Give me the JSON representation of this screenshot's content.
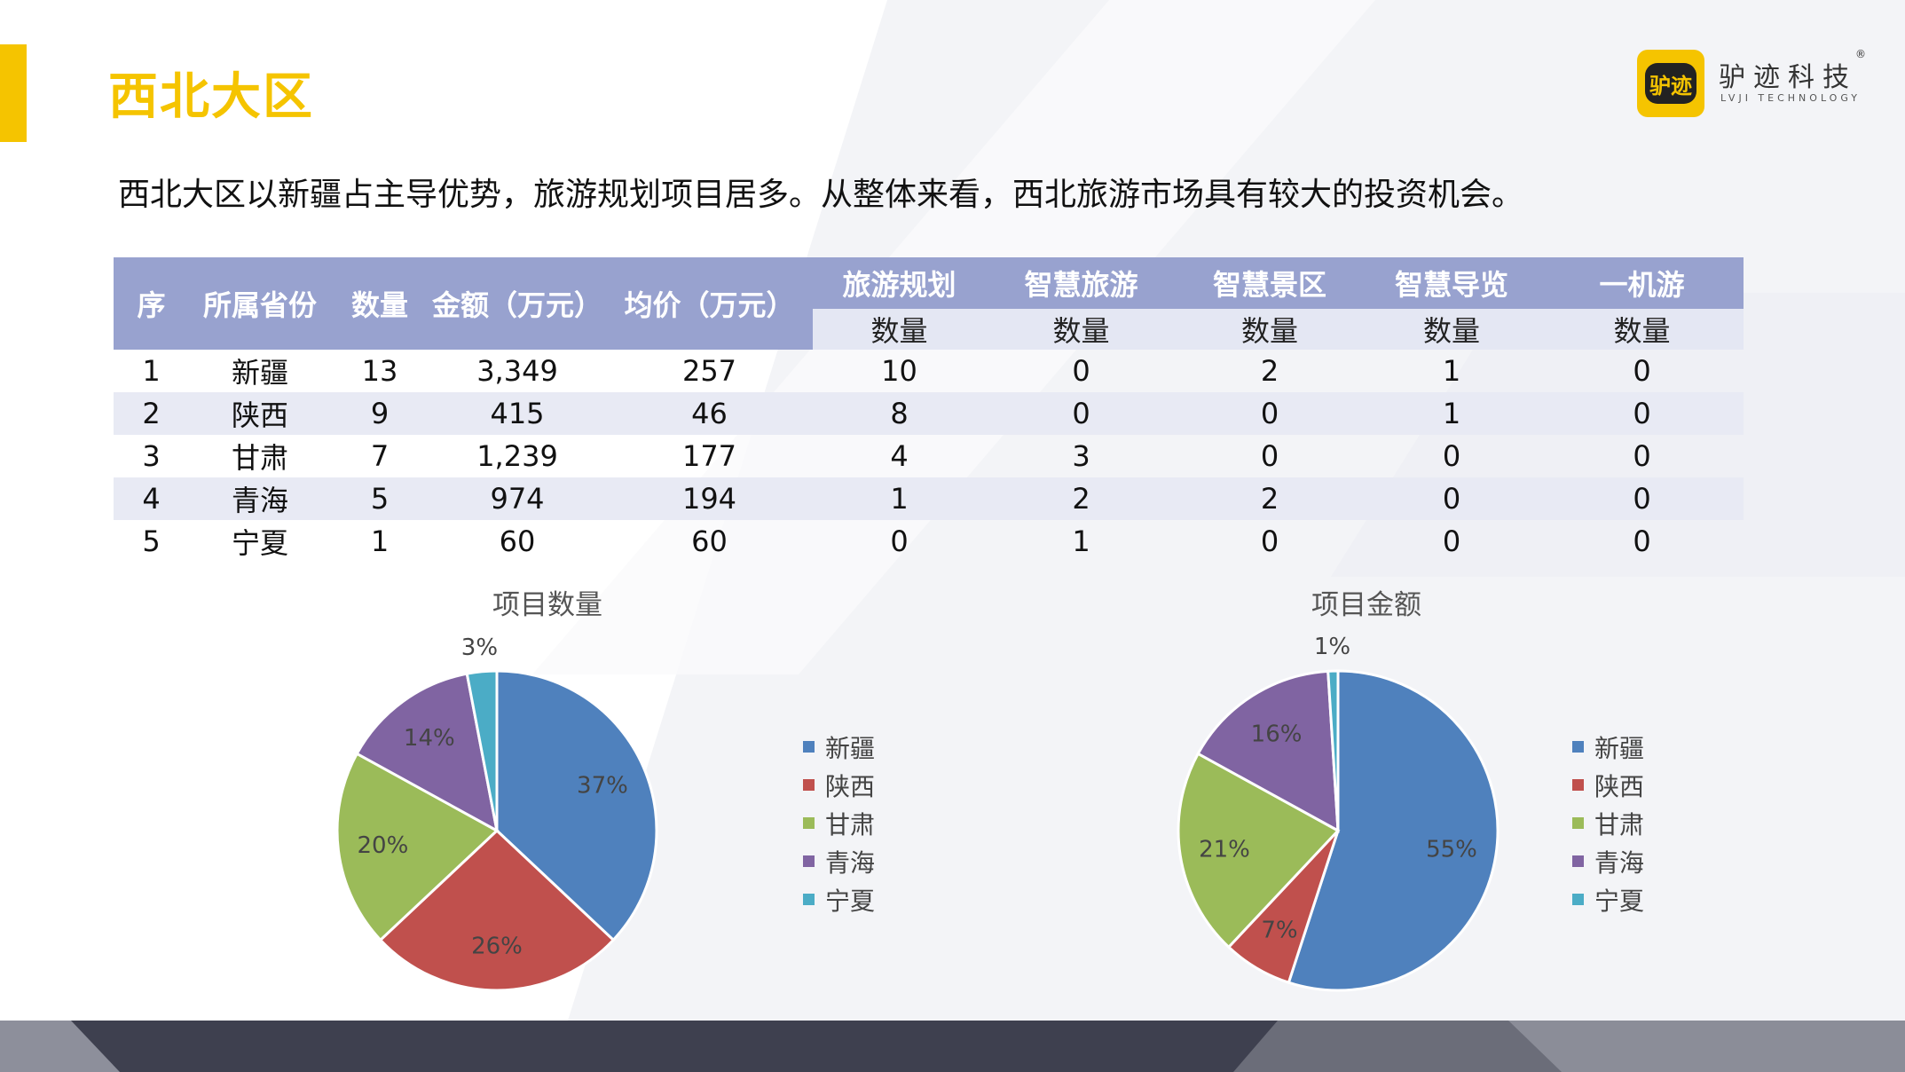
{
  "header": {
    "title": "西北大区",
    "logo_text": "驴迹",
    "brand_name": "驴迹科技",
    "brand_en": "LVJI TECHNOLOGY",
    "registered_mark": "®"
  },
  "summary": "西北大区以新疆占主导优势，旅游规划项目居多。从整体来看，西北旅游市场具有较大的投资机会。",
  "table": {
    "headers": [
      "序",
      "所属省份",
      "数量",
      "金额（万元）",
      "均价（万元）"
    ],
    "group_headers": [
      "旅游规划",
      "智慧旅游",
      "智慧景区",
      "智慧导览",
      "一机游"
    ],
    "sub_header": "数量",
    "rows": [
      [
        "1",
        "新疆",
        "13",
        "3,349",
        "257",
        "10",
        "0",
        "2",
        "1",
        "0"
      ],
      [
        "2",
        "陕西",
        "9",
        "415",
        "46",
        "8",
        "0",
        "0",
        "1",
        "0"
      ],
      [
        "3",
        "甘肃",
        "7",
        "1,239",
        "177",
        "4",
        "3",
        "0",
        "0",
        "0"
      ],
      [
        "4",
        "青海",
        "5",
        "974",
        "194",
        "1",
        "2",
        "2",
        "0",
        "0"
      ],
      [
        "5",
        "宁夏",
        "1",
        "60",
        "60",
        "0",
        "1",
        "0",
        "0",
        "0"
      ]
    ]
  },
  "colors": {
    "accent": "#f5c400",
    "table_header": "#98a2cf",
    "series": [
      "#4f81bd",
      "#c0504d",
      "#9bbb59",
      "#8064a2",
      "#4bacc6"
    ]
  },
  "chart_data": [
    {
      "type": "pie",
      "title": "项目数量",
      "categories": [
        "新疆",
        "陕西",
        "甘肃",
        "青海",
        "宁夏"
      ],
      "values": [
        37,
        26,
        20,
        14,
        3
      ],
      "labels": [
        "37%",
        "26%",
        "20%",
        "14%",
        "3%"
      ],
      "legend": "right"
    },
    {
      "type": "pie",
      "title": "项目金额",
      "categories": [
        "新疆",
        "陕西",
        "甘肃",
        "青海",
        "宁夏"
      ],
      "values": [
        55,
        7,
        21,
        16,
        1
      ],
      "labels": [
        "55%",
        "7%",
        "21%",
        "16%",
        "1%"
      ],
      "legend": "right"
    }
  ]
}
